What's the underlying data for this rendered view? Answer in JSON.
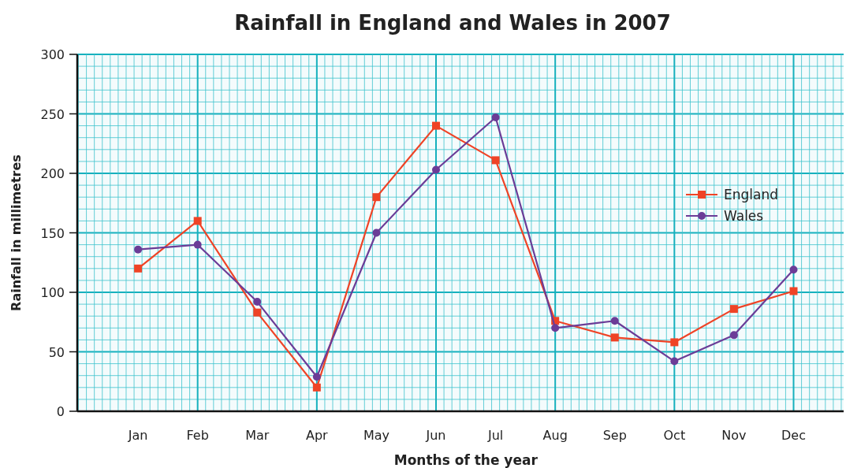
{
  "chart_data": {
    "type": "line",
    "title": "Rainfall in England and Wales in 2007",
    "xlabel": "Months of the year",
    "ylabel": "Rainfall in millimetres",
    "categories": [
      "Jan",
      "Feb",
      "Mar",
      "Apr",
      "May",
      "Jun",
      "Jul",
      "Aug",
      "Sep",
      "Oct",
      "Nov",
      "Dec"
    ],
    "series": [
      {
        "name": "England",
        "color": "#ef4326",
        "marker": "square",
        "values": [
          120,
          160,
          83,
          20,
          180,
          240,
          211,
          76,
          62,
          58,
          86,
          101
        ]
      },
      {
        "name": "Wales",
        "color": "#6b3c97",
        "marker": "circle",
        "values": [
          136,
          140,
          92,
          29,
          150,
          203,
          247,
          70,
          76,
          42,
          64,
          119
        ]
      }
    ],
    "ylim": [
      0,
      300
    ],
    "yticks": [
      0,
      50,
      100,
      150,
      200,
      250,
      300
    ],
    "grid": true,
    "legend": "right",
    "line_style": "solid"
  }
}
